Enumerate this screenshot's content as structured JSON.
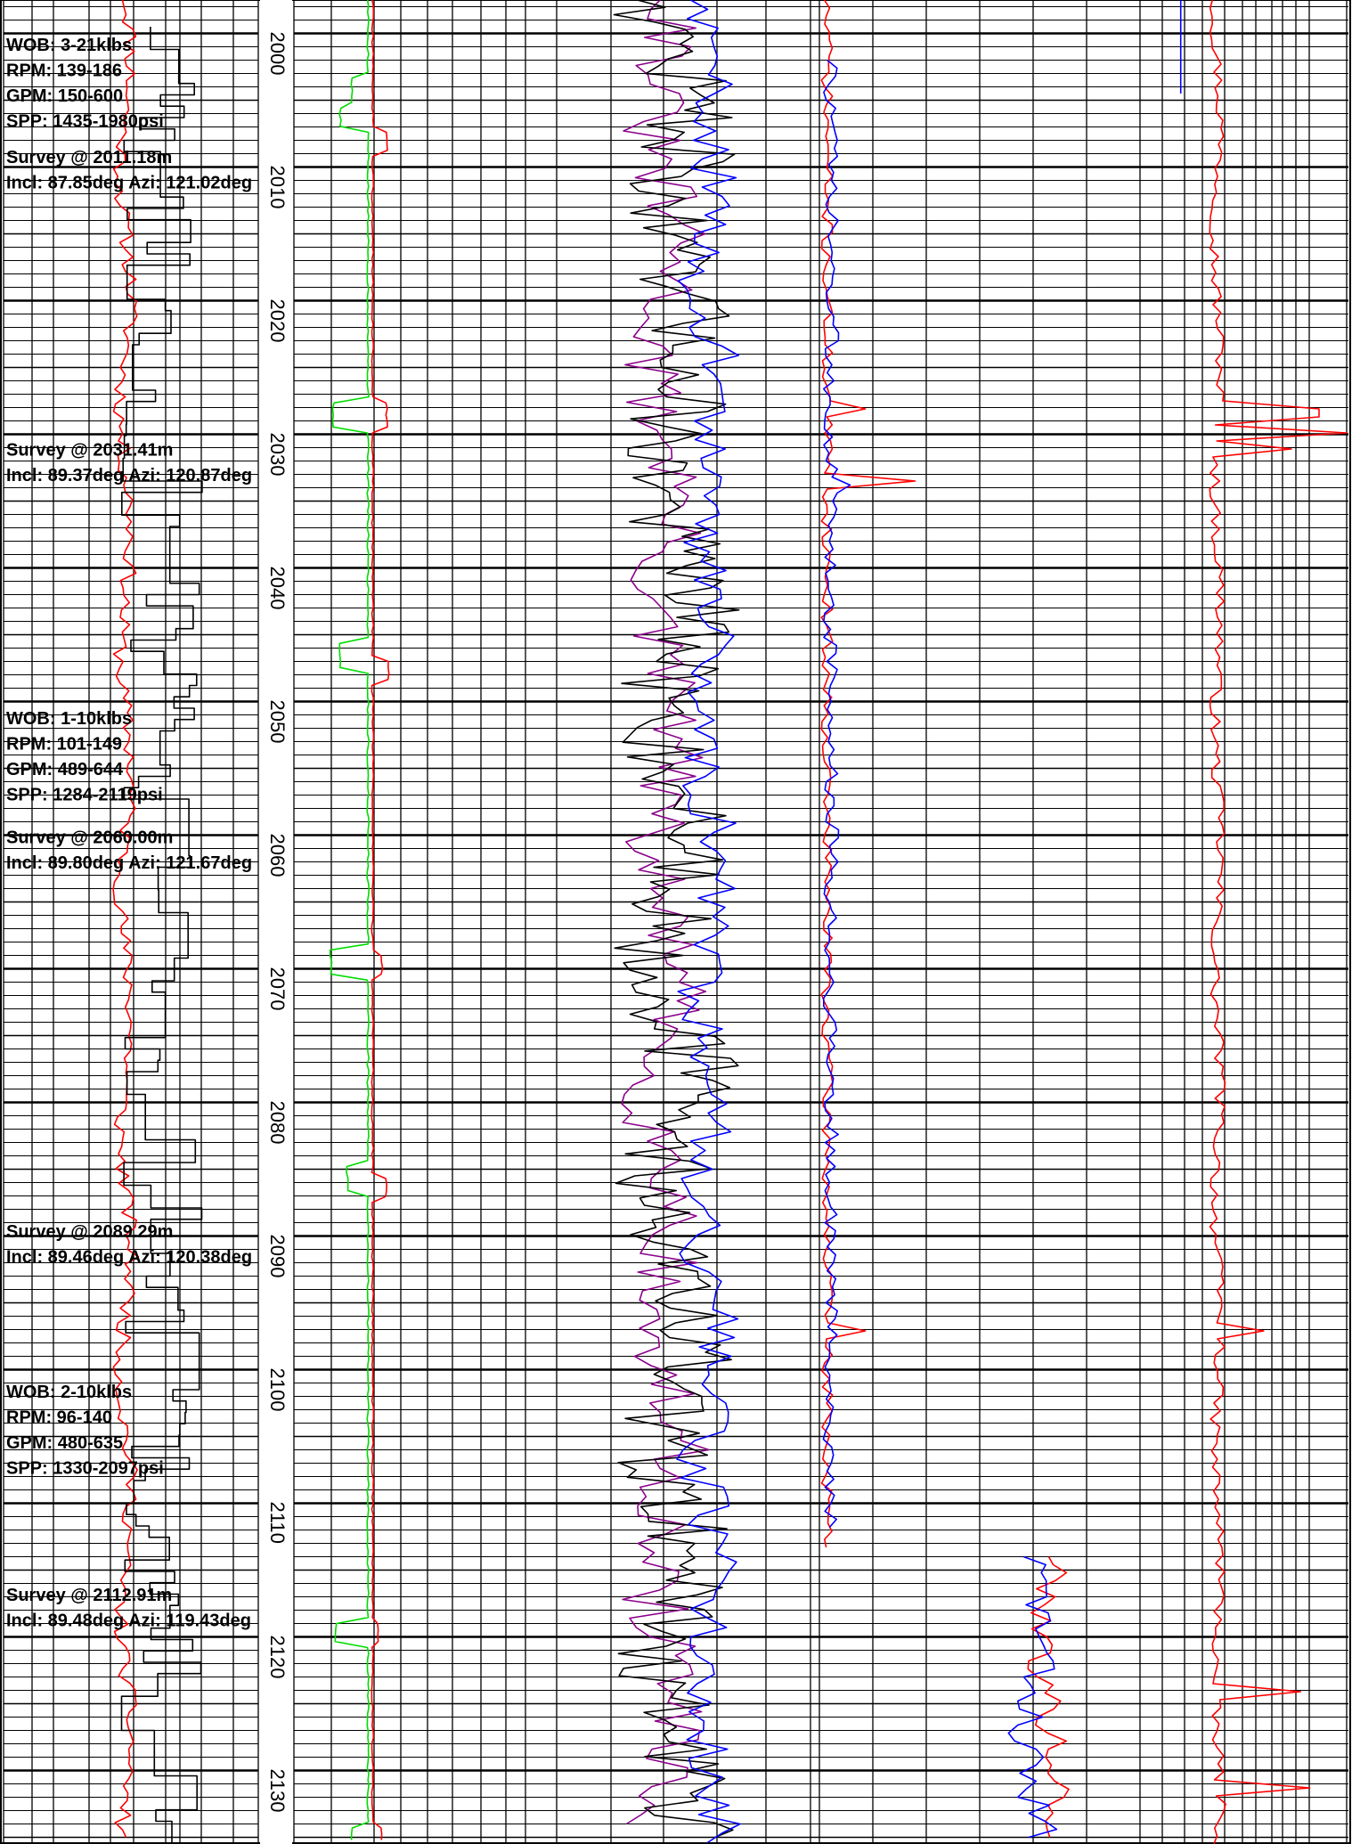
{
  "chart_data": {
    "type": "line",
    "subtype": "well-log",
    "depth_unit": "m",
    "depth_range": [
      1997.5,
      2135.5
    ],
    "depth_ticks": [
      "2000",
      "2010",
      "2020",
      "2030",
      "2040",
      "2050",
      "2060",
      "2070",
      "2080",
      "2090",
      "2100",
      "2110",
      "2120",
      "2130"
    ],
    "gridlines": true,
    "annotations": [
      {
        "depth": 2001.3,
        "text": "WOB: 3-21klbs"
      },
      {
        "depth": 2003.2,
        "text": "RPM: 139-186"
      },
      {
        "depth": 2005.1,
        "text": "GPM: 150-600"
      },
      {
        "depth": 2007.0,
        "text": "SPP: 1435-1980psi"
      },
      {
        "depth": 2009.7,
        "text": "Survey @ 2011.18m"
      },
      {
        "depth": 2011.6,
        "text": "Incl: 87.85deg Azi: 121.02deg"
      },
      {
        "depth": 2031.6,
        "text": "Survey @ 2031.41m"
      },
      {
        "depth": 2033.5,
        "text": "Incl: 89.37deg Azi: 120.87deg"
      },
      {
        "depth": 2051.7,
        "text": "WOB: 1-10klbs"
      },
      {
        "depth": 2053.6,
        "text": "RPM: 101-149"
      },
      {
        "depth": 2055.5,
        "text": "GPM: 489-644"
      },
      {
        "depth": 2057.4,
        "text": "SPP: 1284-2119psi"
      },
      {
        "depth": 2060.6,
        "text": "Survey @ 2060.00m"
      },
      {
        "depth": 2062.5,
        "text": "Incl: 89.80deg Azi: 121.67deg"
      },
      {
        "depth": 2090.1,
        "text": "Survey @ 2089.29m"
      },
      {
        "depth": 2092.0,
        "text": "Incl: 89.46deg Azi: 120.38deg"
      },
      {
        "depth": 2102.1,
        "text": "WOB: 2-10klbs"
      },
      {
        "depth": 2104.0,
        "text": "RPM: 96-140"
      },
      {
        "depth": 2105.9,
        "text": "GPM: 480-635"
      },
      {
        "depth": 2107.8,
        "text": "SPP: 1330-2097psi"
      },
      {
        "depth": 2117.3,
        "text": "Survey @ 2112.91m"
      },
      {
        "depth": 2119.2,
        "text": "Incl: 89.48deg Azi: 119.43deg"
      }
    ],
    "tracks": [
      {
        "id": "track-1",
        "series": [
          {
            "color": "#ff0000",
            "profile": "noise",
            "base": 0.48,
            "amp": 0.03,
            "wave": 0.02,
            "seed": 11,
            "step": 0.55,
            "start": 1997.5,
            "end": 2135.5
          },
          {
            "color": "#000000",
            "profile": "step",
            "base": 0.62,
            "amp": 0.16,
            "seed": 23,
            "step": 0.85,
            "start": 1999.5,
            "end": 2135.5
          }
        ]
      },
      {
        "id": "track-2",
        "series": [
          {
            "color": "#00dd00",
            "profile": "baseline",
            "base": 0.32,
            "events": [
              {
                "depth": 2004.3,
                "value": 0.25
              },
              {
                "depth": 2006.3,
                "value": 0.2
              },
              {
                "depth": 2028.5,
                "value": 0.17
              },
              {
                "depth": 2046.5,
                "value": 0.2
              },
              {
                "depth": 2069.5,
                "value": 0.16
              },
              {
                "depth": 2085.6,
                "value": 0.23
              },
              {
                "depth": 2119.7,
                "value": 0.18
              },
              {
                "depth": 2134.9,
                "value": 0.25
              }
            ],
            "jitter": 0.004,
            "seed": 5,
            "step": 0.45,
            "start": 1997.5,
            "end": 2135.5
          },
          {
            "color": "#ff0000",
            "profile": "baseline",
            "base": 0.34,
            "events": [
              {
                "depth": 2008.0,
                "value": 0.4
              },
              {
                "depth": 2028.5,
                "value": 0.4
              },
              {
                "depth": 2047.8,
                "value": 0.41
              },
              {
                "depth": 2069.6,
                "value": 0.38
              },
              {
                "depth": 2086.4,
                "value": 0.4
              },
              {
                "depth": 2119.7,
                "value": 0.36
              },
              {
                "depth": 2134.9,
                "value": 0.38
              }
            ],
            "jitter": 0.004,
            "seed": 6,
            "step": 0.45,
            "start": 1997.5,
            "end": 2135.5
          }
        ]
      },
      {
        "id": "track-3",
        "series": [
          {
            "color": "#8b008b",
            "profile": "noise",
            "base": 0.45,
            "amp": 0.12,
            "wave": 0.05,
            "seed": 31,
            "step": 0.7,
            "start": 1997.5,
            "end": 2134.5
          },
          {
            "color": "#000000",
            "profile": "noise",
            "base": 0.5,
            "amp": 0.18,
            "wave": 0.06,
            "seed": 47,
            "step": 0.55,
            "start": 1997.5,
            "end": 2135.5
          },
          {
            "color": "#0000ff",
            "profile": "noise",
            "base": 0.62,
            "amp": 0.09,
            "wave": 0.03,
            "seed": 59,
            "step": 0.7,
            "start": 1997.5,
            "end": 2135.5
          }
        ]
      },
      {
        "id": "track-4",
        "series": [
          {
            "color": "#ff0000",
            "profile": "spiky",
            "base": 0.02,
            "amp": 0.015,
            "seed": 71,
            "step": 0.6,
            "spikes": [
              {
                "depth": 2028.3,
                "value": 0.12
              },
              {
                "depth": 2033.6,
                "value": 0.25
              },
              {
                "depth": 2097.0,
                "value": 0.12
              }
            ],
            "start": 1997.5,
            "end": 2113.3
          },
          {
            "color": "#0000ff",
            "profile": "spiky",
            "base": 0.03,
            "amp": 0.02,
            "seed": 73,
            "step": 0.6,
            "spikes": [
              {
                "depth": 2033.8,
                "value": 0.08
              }
            ],
            "start": 2002.0,
            "end": 2112.0
          },
          {
            "color": "#ff0000",
            "profile": "noise",
            "base": 0.6,
            "amp": 0.04,
            "wave": 0.02,
            "seed": 79,
            "step": 0.6,
            "start": 2114.0,
            "end": 2135.5
          },
          {
            "color": "#0000ff",
            "profile": "noise",
            "base": 0.56,
            "amp": 0.05,
            "wave": 0.02,
            "seed": 83,
            "step": 0.6,
            "start": 2114.0,
            "end": 2135.5
          }
        ]
      },
      {
        "id": "track-5",
        "series": [
          {
            "color": "#ff0000",
            "profile": "noise",
            "base": 0.3,
            "amp": 0.03,
            "wave": 0.015,
            "seed": 97,
            "step": 0.6,
            "spikes": [
              {
                "depth": 2028.4,
                "value": 0.85
              },
              {
                "depth": 2029.8,
                "value": 1.0
              },
              {
                "depth": 2031.0,
                "value": 0.7
              },
              {
                "depth": 2097.3,
                "value": 0.55
              },
              {
                "depth": 2124.1,
                "value": 0.75
              },
              {
                "depth": 2131.2,
                "value": 0.8
              }
            ],
            "start": 1997.5,
            "end": 2135.5
          },
          {
            "color": "#0000ff",
            "profile": "segment",
            "base": 0.1,
            "start": 1997.5,
            "end": 2004.5
          }
        ]
      }
    ]
  }
}
